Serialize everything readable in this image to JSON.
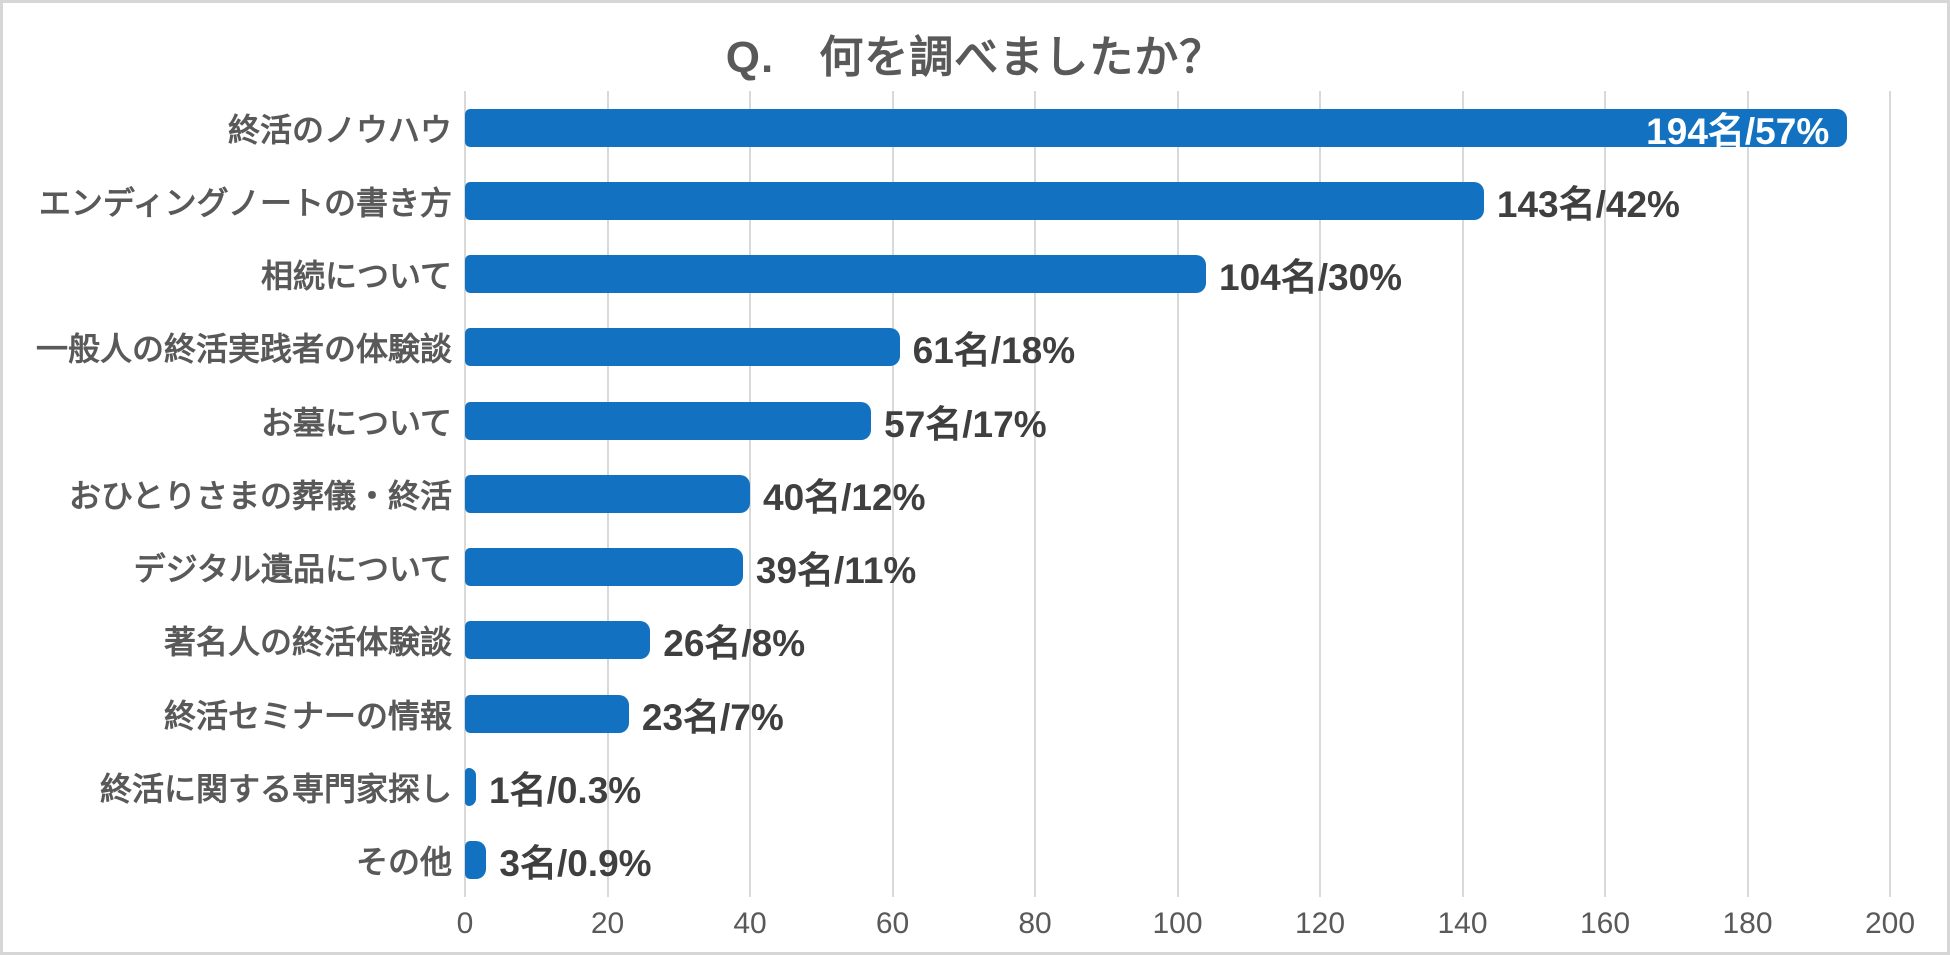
{
  "chart_data": {
    "type": "bar",
    "orientation": "horizontal",
    "title": "Q.　何を調べましたか？",
    "xlabel": "",
    "ylabel": "",
    "xlim": [
      0,
      200
    ],
    "x_ticks": [
      0,
      20,
      40,
      60,
      80,
      100,
      120,
      140,
      160,
      180,
      200
    ],
    "grid": true,
    "bar_color": "#1272c1",
    "gridline_color": "#d9d9d9",
    "label_color": "#595959",
    "value_label_color": "#3f3f3f",
    "inside_label_color": "#ffffff",
    "categories": [
      "終活のノウハウ",
      "エンディングノートの書き方",
      "相続について",
      "一般人の終活実践者の体験談",
      "お墓について",
      "おひとりさまの葬儀・終活",
      "デジタル遺品について",
      "著名人の終活体験談",
      "終活セミナーの情報",
      "終活に関する専門家探し",
      "その他"
    ],
    "values": [
      194,
      143,
      104,
      61,
      57,
      40,
      39,
      26,
      23,
      1,
      3
    ],
    "items": [
      {
        "category": "終活のノウハウ",
        "value": 194,
        "label": "194名/57%",
        "label_inside": true
      },
      {
        "category": "エンディングノートの書き方",
        "value": 143,
        "label": "143名/42%",
        "label_inside": false
      },
      {
        "category": "相続について",
        "value": 104,
        "label": "104名/30%",
        "label_inside": false
      },
      {
        "category": "一般人の終活実践者の体験談",
        "value": 61,
        "label": "61名/18%",
        "label_inside": false
      },
      {
        "category": "お墓について",
        "value": 57,
        "label": "57名/17%",
        "label_inside": false
      },
      {
        "category": "おひとりさまの葬儀・終活",
        "value": 40,
        "label": "40名/12%",
        "label_inside": false
      },
      {
        "category": "デジタル遺品について",
        "value": 39,
        "label": "39名/11%",
        "label_inside": false
      },
      {
        "category": "著名人の終活体験談",
        "value": 26,
        "label": "26名/8%",
        "label_inside": false
      },
      {
        "category": "終活セミナーの情報",
        "value": 23,
        "label": "23名/7%",
        "label_inside": false
      },
      {
        "category": "終活に関する専門家探し",
        "value": 1,
        "label": "1名/0.3%",
        "label_inside": false
      },
      {
        "category": "その他",
        "value": 3,
        "label": "3名/0.9%",
        "label_inside": false
      }
    ]
  }
}
